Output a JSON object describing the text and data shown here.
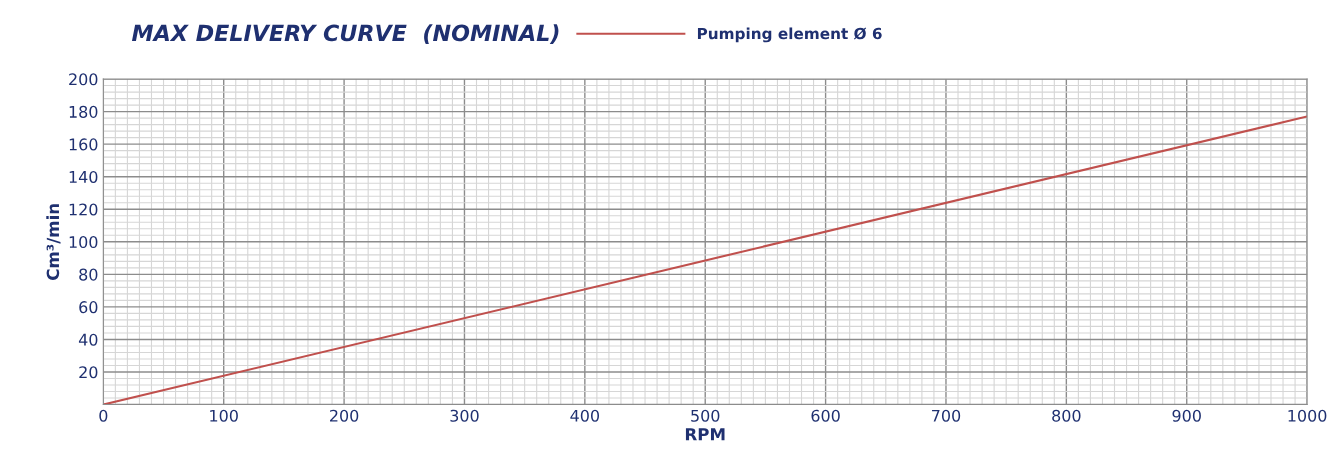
{
  "chart_data": {
    "type": "line",
    "title": "MAX DELIVERY CURVE  (NOMINAL)",
    "xlabel": "RPM",
    "ylabel": "Cm³/min",
    "x": [
      0,
      1000
    ],
    "series": [
      {
        "name": "Pumping element Ø 6",
        "color": "#c0504d",
        "values": [
          0,
          177
        ]
      }
    ],
    "xlim": [
      0,
      1000
    ],
    "xticks": [
      0,
      100,
      200,
      300,
      400,
      500,
      600,
      700,
      800,
      900,
      1000
    ],
    "ylim": [
      0,
      200
    ],
    "yticks": [
      {
        "value": 0,
        "label": null
      },
      20,
      40,
      60,
      80,
      100,
      120,
      140,
      160,
      180,
      200
    ],
    "grid": true,
    "legend": "top right",
    "marker": "none",
    "line_style": "solid"
  }
}
